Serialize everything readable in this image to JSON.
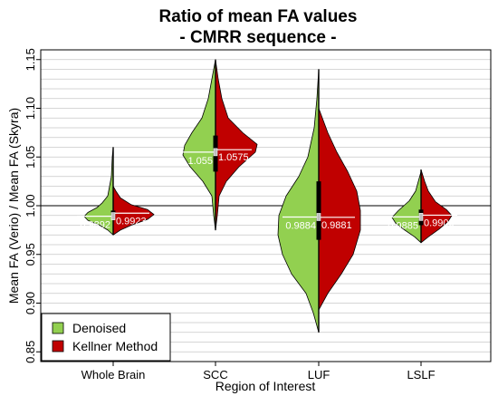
{
  "chart_data": {
    "type": "violin",
    "title_line1": "Ratio of mean FA values",
    "title_line2": "- CMRR sequence -",
    "xlabel": "Region of Interest",
    "ylabel": "Mean FA (Verio) / Mean FA (Skyra)",
    "ylim": [
      0.84,
      1.16
    ],
    "yticks": [
      "0.85",
      "0.90",
      "0.95",
      "1.00",
      "1.05",
      "1.10",
      "1.15"
    ],
    "reference_line": 1.0,
    "grid": "horizontal minor lines",
    "legend_position": "bottom-left",
    "categories": [
      "Whole Brain",
      "SCC",
      "LUF",
      "LSLF"
    ],
    "series": [
      {
        "name": "Denoised",
        "color": "#92d050",
        "medians": [
          0.9892,
          1.055,
          0.9884,
          0.9885
        ],
        "median_labels": [
          "0.9892",
          "1.055",
          "0.9884",
          "0.9885"
        ],
        "ranges": [
          [
            0.97,
            1.06
          ],
          [
            0.975,
            1.15
          ],
          [
            0.87,
            1.14
          ],
          [
            0.962,
            1.035
          ]
        ],
        "iqr": [
          [
            0.988,
            0.995
          ],
          [
            1.035,
            1.072
          ],
          [
            0.965,
            1.025
          ],
          [
            0.98,
            0.996
          ]
        ]
      },
      {
        "name": "Kellner Method",
        "color": "#c00000",
        "medians": [
          0.9923,
          1.0575,
          0.9881,
          0.9903
        ],
        "median_labels": [
          "0.9923",
          "1.0575",
          "0.9881",
          "0.9903"
        ],
        "ranges": [
          [
            0.97,
            1.02
          ],
          [
            0.975,
            1.15
          ],
          [
            0.893,
            1.1
          ],
          [
            0.962,
            1.037
          ]
        ],
        "iqr": [
          [
            0.988,
            0.995
          ],
          [
            1.035,
            1.072
          ],
          [
            0.965,
            1.025
          ],
          [
            0.98,
            0.996
          ]
        ]
      }
    ]
  }
}
